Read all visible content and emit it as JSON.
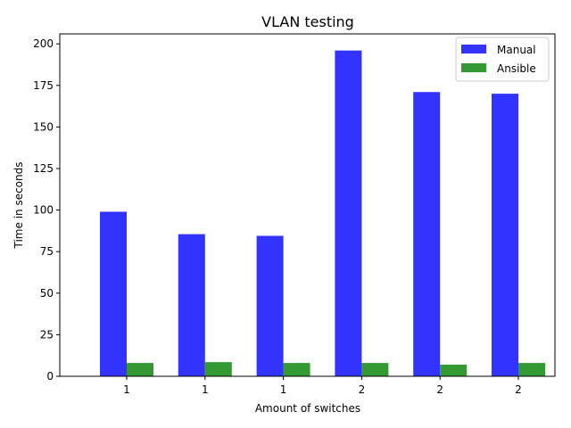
{
  "chart_data": {
    "type": "bar",
    "title": "VLAN testing",
    "xlabel": "Amount of switches",
    "ylabel": "Time in seconds",
    "categories": [
      "1",
      "1",
      "1",
      "2",
      "2",
      "2"
    ],
    "series": [
      {
        "name": "Manual",
        "color": "#3333ff",
        "values": [
          99,
          85.5,
          84.5,
          196,
          171,
          170
        ]
      },
      {
        "name": "Ansible",
        "color": "#339933",
        "values": [
          8,
          8.5,
          8,
          8,
          7,
          8
        ]
      }
    ],
    "ylim": [
      0,
      206
    ],
    "yticks": [
      0,
      25,
      50,
      75,
      100,
      125,
      150,
      175,
      200
    ],
    "grid": false,
    "legend": "top-right"
  }
}
